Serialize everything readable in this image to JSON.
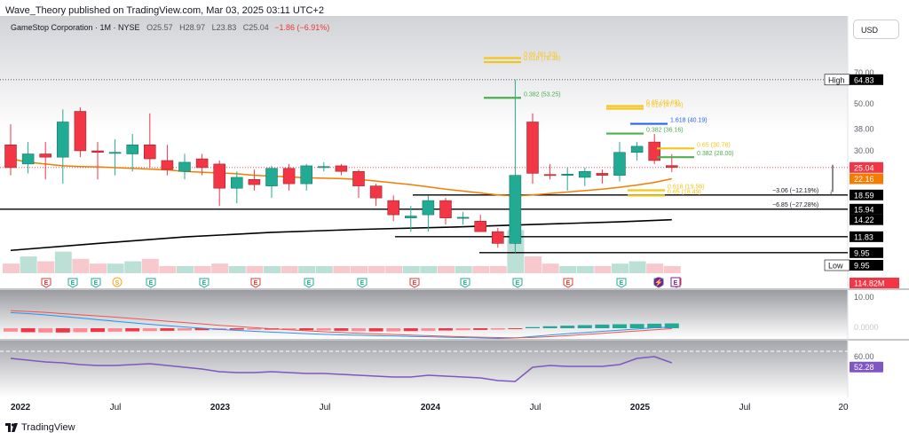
{
  "header": {
    "published": "Wave_Theory published on TradingView.com, Mar 03, 2025 03:11 UTC+2",
    "symbol": "GameStop Corporation · 1M · NYSE",
    "ohlc": {
      "o": "O25.57",
      "h": "H28.97",
      "l": "L23.83",
      "c": "C25.04",
      "chg": "−1.86 (−6.91%)"
    },
    "currency": "USD"
  },
  "footer": {
    "brand": "TradingView"
  },
  "colors": {
    "up": "#22ab94",
    "down": "#f23645",
    "gold": "#f5c518",
    "green_line": "#4caf50",
    "blue_line": "#2962ff",
    "ema": "#f57c00",
    "sma": "#000000",
    "rsi": "#7e57c2"
  },
  "chart_data": [
    {
      "type": "candlestick",
      "title": "",
      "timeframe": "1M",
      "y_tick_labels": [
        "70.00",
        "50.00",
        "38.00",
        "30.00"
      ],
      "ylim": [
        9.2,
        88
      ],
      "log_scale": true,
      "x_tick_labels": [
        "2022",
        "Jul",
        "2023",
        "Jul",
        "2024",
        "Jul",
        "2025",
        "Jul",
        "20"
      ],
      "candles": [
        {
          "o": 32.0,
          "h": 40.0,
          "l": 23.0,
          "c": 25.0
        },
        {
          "o": 26.0,
          "h": 33.0,
          "l": 23.5,
          "c": 29.0
        },
        {
          "o": 29.0,
          "h": 33.0,
          "l": 22.0,
          "c": 28.0
        },
        {
          "o": 28.0,
          "h": 47.0,
          "l": 21.0,
          "c": 41.0
        },
        {
          "o": 46.0,
          "h": 48.0,
          "l": 28.0,
          "c": 30.0
        },
        {
          "o": 30.0,
          "h": 33.0,
          "l": 22.0,
          "c": 29.5
        },
        {
          "o": 29.5,
          "h": 34.0,
          "l": 23.0,
          "c": 29.5
        },
        {
          "o": 29.0,
          "h": 36.0,
          "l": 24.0,
          "c": 32.0
        },
        {
          "o": 32.0,
          "h": 45.0,
          "l": 25.0,
          "c": 27.5
        },
        {
          "o": 27.0,
          "h": 32.0,
          "l": 23.0,
          "c": 24.5
        },
        {
          "o": 24.0,
          "h": 29.0,
          "l": 22.0,
          "c": 26.5
        },
        {
          "o": 27.5,
          "h": 29.0,
          "l": 23.0,
          "c": 25.0
        },
        {
          "o": 26.0,
          "h": 27.0,
          "l": 16.5,
          "c": 20.0
        },
        {
          "o": 20.0,
          "h": 24.0,
          "l": 17.0,
          "c": 22.5
        },
        {
          "o": 22.0,
          "h": 24.5,
          "l": 19.5,
          "c": 20.8
        },
        {
          "o": 20.5,
          "h": 25.5,
          "l": 18.0,
          "c": 24.8
        },
        {
          "o": 24.8,
          "h": 26.0,
          "l": 19.5,
          "c": 21.0
        },
        {
          "o": 21.0,
          "h": 26.0,
          "l": 19.5,
          "c": 25.5
        },
        {
          "o": 25.0,
          "h": 26.5,
          "l": 24.0,
          "c": 25.3
        },
        {
          "o": 25.5,
          "h": 26.0,
          "l": 23.0,
          "c": 24.0
        },
        {
          "o": 24.0,
          "h": 24.5,
          "l": 18.0,
          "c": 20.5
        },
        {
          "o": 20.5,
          "h": 21.0,
          "l": 16.5,
          "c": 18.0
        },
        {
          "o": 17.5,
          "h": 18.5,
          "l": 14.0,
          "c": 15.0
        },
        {
          "o": 14.5,
          "h": 16.5,
          "l": 12.5,
          "c": 14.8
        },
        {
          "o": 15.0,
          "h": 18.5,
          "l": 12.5,
          "c": 17.5
        },
        {
          "o": 17.5,
          "h": 18.0,
          "l": 13.5,
          "c": 14.5
        },
        {
          "o": 14.5,
          "h": 15.5,
          "l": 13.5,
          "c": 14.6
        },
        {
          "o": 14.0,
          "h": 15.0,
          "l": 12.5,
          "c": 12.5
        },
        {
          "o": 12.5,
          "h": 13.0,
          "l": 10.5,
          "c": 11.0
        },
        {
          "o": 11.0,
          "h": 64.83,
          "l": 9.95,
          "c": 23.0
        },
        {
          "o": 41.0,
          "h": 45.0,
          "l": 21.0,
          "c": 23.5
        },
        {
          "o": 23.2,
          "h": 26.0,
          "l": 22.0,
          "c": 23.0
        },
        {
          "o": 23.0,
          "h": 25.0,
          "l": 19.5,
          "c": 23.3
        },
        {
          "o": 22.5,
          "h": 25.0,
          "l": 20.5,
          "c": 24.0
        },
        {
          "o": 23.5,
          "h": 24.5,
          "l": 21.0,
          "c": 23.0
        },
        {
          "o": 23.0,
          "h": 33.0,
          "l": 21.5,
          "c": 29.5
        },
        {
          "o": 29.5,
          "h": 33.0,
          "l": 27.0,
          "c": 31.5
        },
        {
          "o": 33.0,
          "h": 36.0,
          "l": 26.0,
          "c": 27.0
        },
        {
          "o": 25.57,
          "h": 28.97,
          "l": 23.83,
          "c": 25.04
        }
      ],
      "ema_line": [
        27.5,
        26.5,
        26.0,
        25.5,
        25.3,
        25.2,
        25.0,
        24.8,
        24.6,
        24.4,
        24.0,
        23.8,
        23.6,
        23.4,
        23.0,
        22.8,
        22.6,
        22.4,
        22.3,
        22.2,
        22.0,
        21.6,
        21.2,
        20.8,
        20.3,
        19.8,
        19.4,
        19.0,
        18.6,
        18.4,
        18.6,
        18.9,
        19.2,
        19.5,
        19.8,
        20.2,
        20.7,
        21.3,
        22.16
      ],
      "sma_line": [
        {
          "i": 0,
          "v": 10.2
        },
        {
          "i": 5,
          "v": 11.0
        },
        {
          "i": 10,
          "v": 11.8
        },
        {
          "i": 15,
          "v": 12.4
        },
        {
          "i": 20,
          "v": 12.8
        },
        {
          "i": 25,
          "v": 13.1
        },
        {
          "i": 30,
          "v": 13.5
        },
        {
          "i": 35,
          "v": 13.9
        },
        {
          "i": 38,
          "v": 14.22
        }
      ],
      "fib_levels": [
        {
          "label": "0.65 (81.93)",
          "value": 81.93,
          "color": "#f5c518"
        },
        {
          "label": "0.618 (78.38)",
          "value": 78.38,
          "color": "#f5c518"
        },
        {
          "label": "0.382 (53.25)",
          "value": 53.25,
          "color": "#4caf50"
        },
        {
          "label": "0.65 (48.69)",
          "value": 48.69,
          "color": "#f5c518"
        },
        {
          "label": "0.618 (47.34)",
          "value": 47.34,
          "color": "#f5c518"
        },
        {
          "label": "1.618 (40.19)",
          "value": 40.19,
          "color": "#2962ff"
        },
        {
          "label": "0.382 (36.16)",
          "value": 36.16,
          "color": "#4caf50"
        },
        {
          "label": "0.65 (30.78)",
          "value": 30.78,
          "color": "#f5c518"
        },
        {
          "label": "0.382 (28.00)",
          "value": 28.0,
          "color": "#4caf50"
        },
        {
          "label": "0.618 (19.56)",
          "value": 19.56,
          "color": "#f5c518"
        },
        {
          "label": "0.65 (18.49)",
          "value": 18.49,
          "color": "#f5c518"
        }
      ],
      "horizontal_levels": [
        18.59,
        15.94,
        11.83,
        9.95
      ],
      "price_labels": [
        {
          "text": "High",
          "value": "64.83",
          "style": "dark"
        },
        {
          "text": "",
          "value": "25.04",
          "style": "red"
        },
        {
          "text": "",
          "value": "22.16",
          "style": "orange"
        },
        {
          "text": "",
          "value": "18.59",
          "style": "dark"
        },
        {
          "text": "",
          "value": "15.94",
          "style": "dark"
        },
        {
          "text": "",
          "value": "14.22",
          "style": "dark"
        },
        {
          "text": "",
          "value": "11.83",
          "style": "dark"
        },
        {
          "text": "",
          "value": "9.95",
          "style": "dark"
        },
        {
          "text": "Low",
          "value": "9.95",
          "style": "dark"
        }
      ],
      "measure_labels": [
        "−3.06 (−12.19%)",
        "−6.85 (−27.28%)"
      ],
      "volume_label": "114.82M",
      "event_markers": [
        "E",
        "E",
        "E",
        "S",
        "E",
        "E",
        "E",
        "E",
        "E",
        "E",
        "E",
        "E",
        "E",
        "E",
        "E",
        "E",
        "⚡",
        "E"
      ]
    },
    {
      "type": "macd",
      "y_tick_labels": [
        "10.00",
        "0.0000"
      ],
      "histogram": [
        -1.2,
        -1.4,
        -1.5,
        -1.5,
        -1.4,
        -1.3,
        -1.2,
        -1.1,
        -1.0,
        -0.9,
        -0.8,
        -0.7,
        -0.6,
        -0.5,
        -0.5,
        -0.5,
        -0.6,
        -0.7,
        -0.8,
        -0.9,
        -1.0,
        -1.1,
        -1.1,
        -1.0,
        -0.9,
        -0.8,
        -0.7,
        -0.6,
        -0.5,
        -0.3,
        0.4,
        0.7,
        0.9,
        1.1,
        1.3,
        1.4,
        1.5,
        1.6,
        1.7
      ],
      "macd_line": [
        8,
        7.5,
        6.8,
        6,
        5.2,
        4.4,
        3.6,
        2.8,
        2.0,
        1.3,
        0.6,
        0,
        -0.6,
        -1.1,
        -1.6,
        -2.0,
        -2.4,
        -2.8,
        -3.1,
        -3.4,
        -3.6,
        -3.8,
        -4.0,
        -4.2,
        -4.4,
        -4.6,
        -4.8,
        -5.0,
        -5.2,
        -5.0,
        -4.2,
        -3.5,
        -2.8,
        -2.2,
        -1.6,
        -1.0,
        -0.4,
        0.2,
        0.6
      ],
      "signal_line": [
        9,
        8.6,
        8.1,
        7.5,
        6.9,
        6.3,
        5.7,
        5.0,
        4.3,
        3.6,
        2.9,
        2.2,
        1.5,
        0.9,
        0.3,
        -0.3,
        -0.8,
        -1.3,
        -1.8,
        -2.2,
        -2.6,
        -2.9,
        -3.2,
        -3.5,
        -3.8,
        -4.1,
        -4.4,
        -4.6,
        -4.8,
        -4.9,
        -4.7,
        -4.3,
        -3.8,
        -3.2,
        -2.6,
        -2.0,
        -1.4,
        -0.8,
        -0.2
      ]
    },
    {
      "type": "line",
      "name": "RSI",
      "y_tick_labels": [
        "60.00",
        "52.28"
      ],
      "ylim": [
        20,
        80
      ],
      "reference_line": 70,
      "values": [
        62,
        60,
        58,
        57,
        55,
        54,
        54,
        55,
        56,
        54,
        52,
        50,
        47,
        46,
        46,
        47,
        46,
        45,
        45,
        44,
        43,
        42,
        41,
        41,
        43,
        42,
        41,
        40,
        37,
        36,
        52,
        54,
        53,
        53,
        53,
        55,
        62,
        64,
        57
      ]
    }
  ]
}
